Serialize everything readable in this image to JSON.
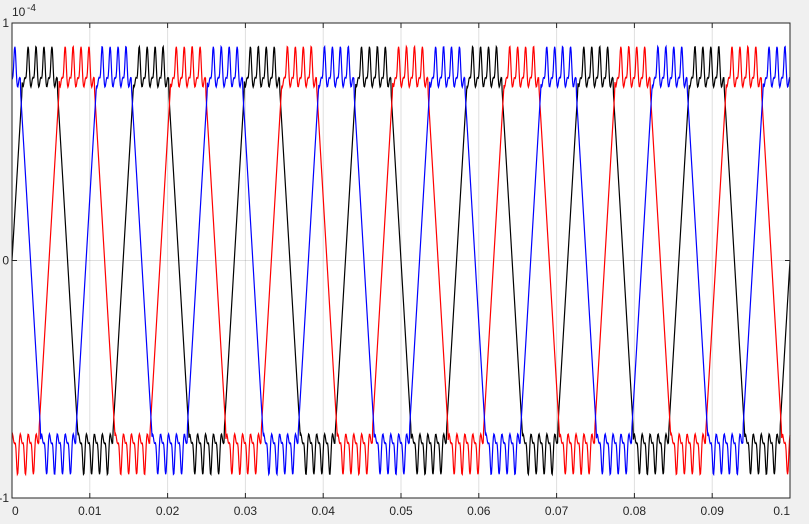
{
  "chart_data": {
    "type": "line",
    "title": "",
    "xlabel": "",
    "ylabel": "",
    "xlim": [
      0,
      0.1
    ],
    "ylim": [
      -1.0,
      1.0
    ],
    "y_exponent_label": "10",
    "y_exponent_power": "-4",
    "grid": true,
    "legend": "none",
    "xticks": [
      0,
      0.01,
      0.02,
      0.03,
      0.04,
      0.05,
      0.06,
      0.07,
      0.08,
      0.09,
      0.1
    ],
    "xtick_labels": [
      "0",
      "0.01",
      "0.02",
      "0.03",
      "0.04",
      "0.05",
      "0.06",
      "0.07",
      "0.08",
      "0.09",
      "0.1"
    ],
    "yticks": [
      -1,
      0,
      1
    ],
    "ytick_labels": [
      "-1",
      "0",
      "1"
    ],
    "waveform": {
      "fundamental_frequency_hz": 70,
      "peak": 0.9,
      "plateau_level": 0.75,
      "phase_shift_deg": 120
    },
    "series": [
      {
        "color": "#000000",
        "phase_deg": 0
      },
      {
        "color": "#ff0000",
        "phase_deg": -120
      },
      {
        "color": "#0000ff",
        "phase_deg": 120
      }
    ]
  }
}
